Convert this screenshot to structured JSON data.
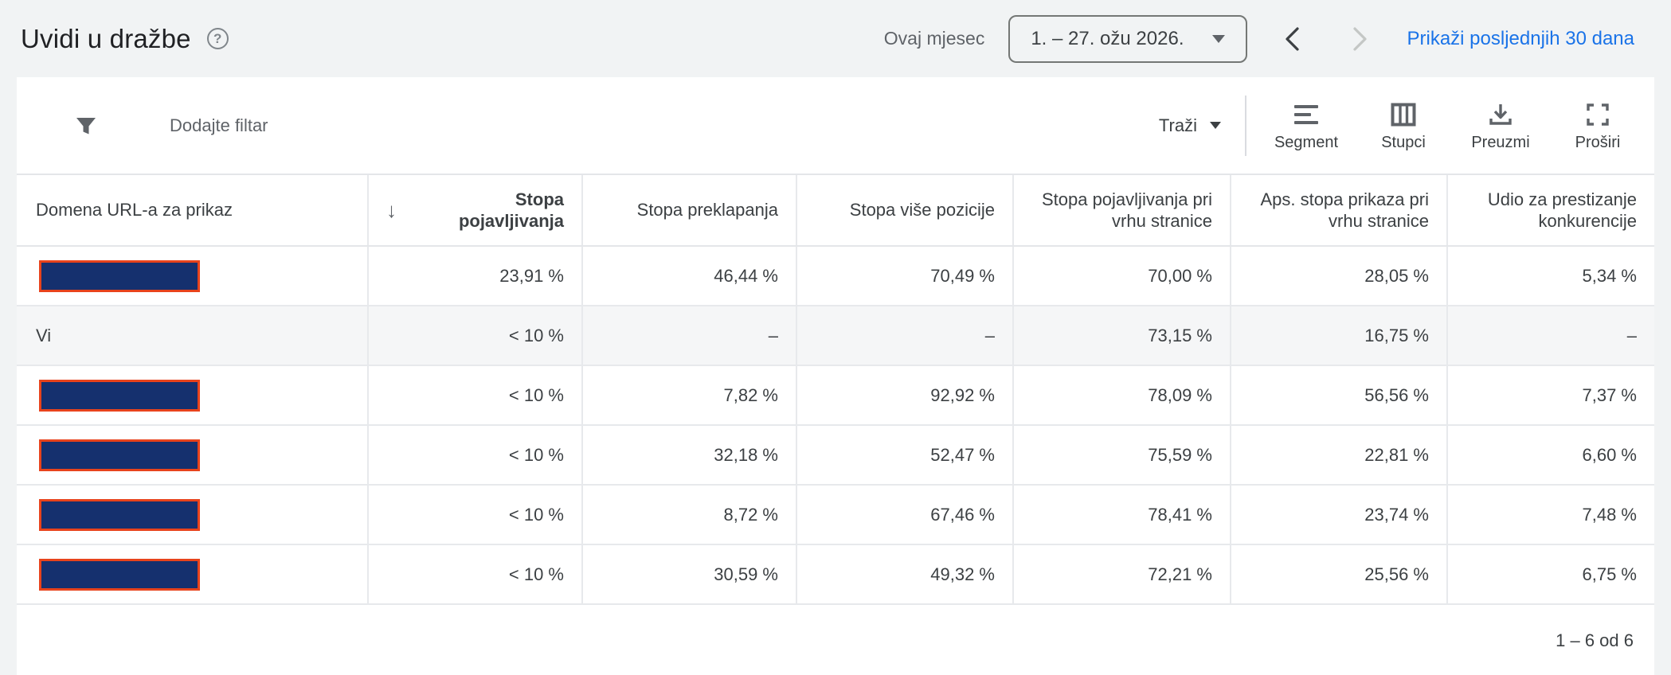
{
  "page": {
    "title": "Uvidi u dražbe"
  },
  "date_bar": {
    "preset_label": "Ovaj mjesec",
    "date_range": "1. – 27. ožu 2026.",
    "show_last_30_link": "Prikaži posljednjih 30 dana"
  },
  "toolbar": {
    "add_filter_label": "Dodajte filtar",
    "search_label": "Traži",
    "segment_label": "Segment",
    "columns_label": "Stupci",
    "download_label": "Preuzmi",
    "expand_label": "Proširi"
  },
  "table": {
    "sort_icon": "↓",
    "columns": [
      {
        "label": "Domena URL-a za prikaz",
        "sorted": false
      },
      {
        "label": "Stopa pojavljivanja",
        "sorted": true
      },
      {
        "label": "Stopa preklapanja",
        "sorted": false
      },
      {
        "label": "Stopa više pozicije",
        "sorted": false
      },
      {
        "label": "Stopa pojavljivanja pri vrhu stranice",
        "sorted": false
      },
      {
        "label": "Aps. stopa prikaza pri vrhu stranice",
        "sorted": false
      },
      {
        "label": "Udio za prestizanje konkurencije",
        "sorted": false
      }
    ],
    "rows": [
      {
        "domain": "",
        "redacted": true,
        "you": false,
        "values": [
          "23,91 %",
          "46,44 %",
          "70,49 %",
          "70,00 %",
          "28,05 %",
          "5,34 %"
        ]
      },
      {
        "domain": "Vi",
        "redacted": false,
        "you": true,
        "values": [
          "< 10 %",
          "–",
          "–",
          "73,15 %",
          "16,75 %",
          "–"
        ]
      },
      {
        "domain": "",
        "redacted": true,
        "you": false,
        "values": [
          "< 10 %",
          "7,82 %",
          "92,92 %",
          "78,09 %",
          "56,56 %",
          "7,37 %"
        ]
      },
      {
        "domain": "",
        "redacted": true,
        "you": false,
        "values": [
          "< 10 %",
          "32,18 %",
          "52,47 %",
          "75,59 %",
          "22,81 %",
          "6,60 %"
        ]
      },
      {
        "domain": "",
        "redacted": true,
        "you": false,
        "values": [
          "< 10 %",
          "8,72 %",
          "67,46 %",
          "78,41 %",
          "23,74 %",
          "7,48 %"
        ]
      },
      {
        "domain": "",
        "redacted": true,
        "you": false,
        "values": [
          "< 10 %",
          "30,59 %",
          "49,32 %",
          "72,21 %",
          "25,56 %",
          "6,75 %"
        ]
      }
    ]
  },
  "footer": {
    "pagination": "1 – 6 od 6"
  },
  "icons": {
    "help": "?"
  },
  "colors": {
    "accent_blue": "#1a73e8",
    "redaction_fill": "#15306e",
    "redaction_border": "#e8431c",
    "you_row_bg": "#f5f6f7",
    "page_bg": "#f1f3f4"
  }
}
